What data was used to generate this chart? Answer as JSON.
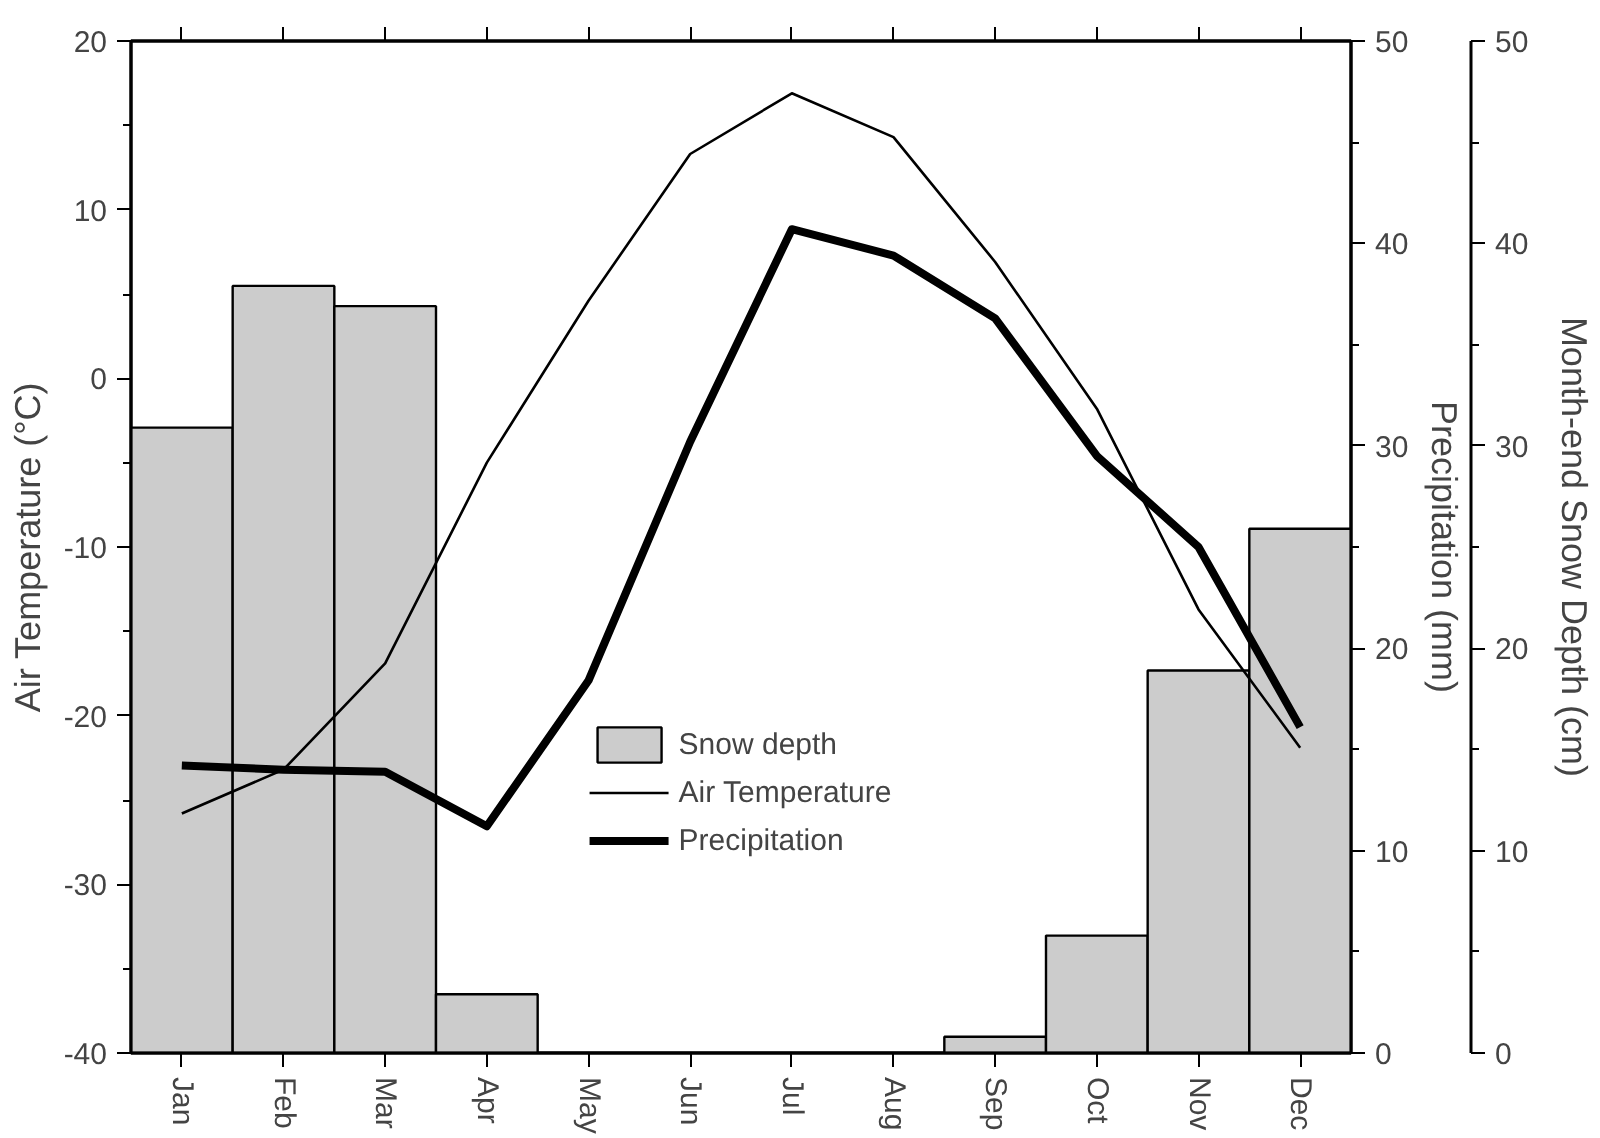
{
  "chart_data": {
    "type": "bar",
    "ylabel": "Air Temperature (°C)",
    "y2label": "Precipitation (mm)",
    "y3label": "Month-end Snow Depth (cm)",
    "categories": [
      "Jan",
      "Feb",
      "Mar",
      "Apr",
      "May",
      "Jun",
      "Jul",
      "Aug",
      "Sep",
      "Oct",
      "Nov",
      "Dec"
    ],
    "series": [
      {
        "name": "Snow depth",
        "axis": "y3",
        "color": "#cccccc",
        "values": [
          30.9,
          37.9,
          36.9,
          2.9,
          0,
          0,
          0,
          0,
          0.8,
          5.8,
          18.9,
          25.9
        ]
      },
      {
        "name": "Air Temperature",
        "type": "line",
        "axis": "y",
        "color": "#000000",
        "values": [
          -25.8,
          -23.2,
          -16.9,
          -5.0,
          4.6,
          13.3,
          16.9,
          14.3,
          6.9,
          -1.8,
          -13.7,
          -21.9
        ]
      },
      {
        "name": "Precipitation",
        "type": "line",
        "axis": "y2",
        "color": "#000000",
        "values": [
          14.2,
          14.0,
          13.9,
          11.2,
          18.4,
          30.2,
          40.7,
          39.4,
          36.3,
          29.5,
          25.0,
          16.1
        ]
      }
    ],
    "ylim": [
      -40,
      20
    ],
    "yticks": [
      -40,
      {
        "value": -35,
        "label": null
      },
      -30,
      {
        "value": -25,
        "label": null
      },
      -20,
      {
        "value": -15,
        "label": null
      },
      -10,
      {
        "value": -5,
        "label": null
      },
      0,
      {
        "value": 5,
        "label": null
      },
      10,
      {
        "value": 15,
        "label": null
      },
      20
    ],
    "y2lim": [
      0,
      50
    ],
    "y2ticks": [
      0,
      {
        "value": 5,
        "label": null
      },
      10,
      {
        "value": 15,
        "label": null
      },
      20,
      {
        "value": 25,
        "label": null
      },
      30,
      {
        "value": 35,
        "label": null
      },
      40,
      {
        "value": 45,
        "label": null
      },
      50
    ],
    "y3lim": [
      0,
      50
    ],
    "y3ticks": [
      0,
      {
        "value": 5,
        "label": null
      },
      10,
      {
        "value": 15,
        "label": null
      },
      20,
      {
        "value": 25,
        "label": null
      },
      30,
      {
        "value": 35,
        "label": null
      },
      40,
      {
        "value": 45,
        "label": null
      },
      50
    ],
    "grid": false,
    "legend": "bottom"
  }
}
